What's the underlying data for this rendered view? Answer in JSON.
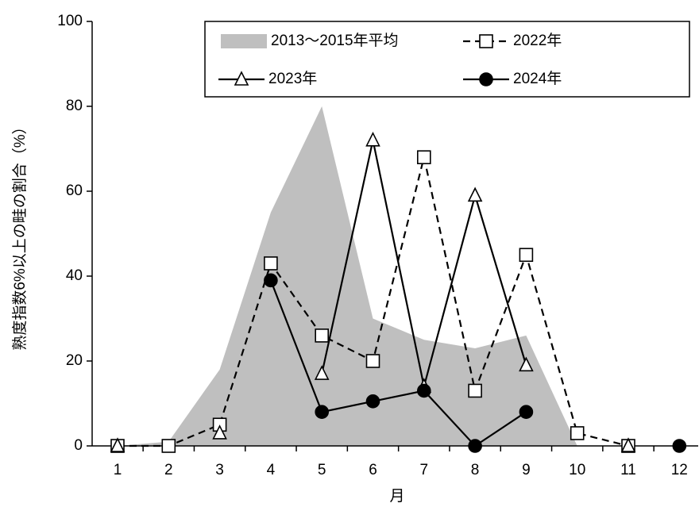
{
  "chart_data": {
    "type": "line",
    "x_label": "月",
    "y_label": "熟度指数6%以上の畦の割合（%）",
    "categories": [
      "1",
      "2",
      "3",
      "4",
      "5",
      "6",
      "7",
      "8",
      "9",
      "10",
      "11",
      "12"
    ],
    "ylim": [
      0,
      100
    ],
    "yticks": [
      0,
      20,
      40,
      60,
      80,
      100
    ],
    "series": [
      {
        "name": "2013～2015年平均",
        "type": "area",
        "color": "#bfbfbf",
        "values": [
          0,
          1,
          18,
          55,
          80,
          30,
          25,
          23,
          26,
          0,
          null,
          null
        ]
      },
      {
        "name": "2022年",
        "type": "line",
        "color": "#000000",
        "dash": true,
        "marker": "square",
        "values": [
          0,
          0,
          5,
          43,
          26,
          20,
          68,
          13,
          45,
          3,
          0,
          null
        ]
      },
      {
        "name": "2023年",
        "type": "line",
        "color": "#000000",
        "dash": false,
        "marker": "triangle",
        "values": [
          0,
          null,
          3,
          null,
          17,
          72,
          14,
          59,
          19,
          null,
          0,
          null
        ]
      },
      {
        "name": "2024年",
        "type": "line",
        "color": "#000000",
        "dash": false,
        "marker": "circle",
        "values": [
          null,
          null,
          null,
          39,
          8,
          10.5,
          13,
          0,
          8,
          null,
          null,
          0
        ]
      }
    ]
  }
}
